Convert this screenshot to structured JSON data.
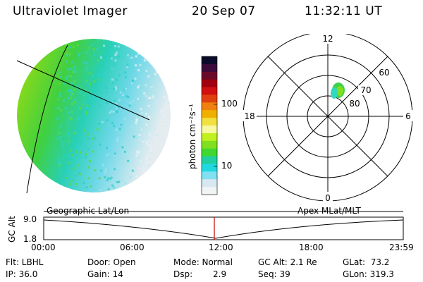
{
  "header": {
    "title": "Ultraviolet Imager",
    "date": "20 Sep 07",
    "time": "11:32:11 UT"
  },
  "colorbar": {
    "label": "photon cm⁻²s⁻¹",
    "ticks": [
      "100",
      "10"
    ],
    "colors": [
      "#0a0a2a",
      "#3a0a3a",
      "#6a0a2a",
      "#a00010",
      "#d01010",
      "#e04010",
      "#f08010",
      "#f0b000",
      "#f0e040",
      "#f8f8a0",
      "#c0f020",
      "#80e020",
      "#40d830",
      "#20d0a0",
      "#20d8e0",
      "#80e0f0",
      "#d8e8f0",
      "#f0f4f4"
    ]
  },
  "polar": {
    "labels": {
      "top": "12",
      "bottom": "0",
      "left": "18",
      "right": "6"
    },
    "ring_labels": [
      "60",
      "70",
      "80"
    ]
  },
  "timeline": {
    "ylabel": "GC Alt",
    "ymax": "9.0",
    "ymin": "1.8",
    "left_label": "Geographic Lat/Lon",
    "right_label": "Apex MLat/MLT",
    "ticks": [
      "00:00",
      "06:00",
      "12:00",
      "18:00",
      "23:59"
    ]
  },
  "info": {
    "flt": "Flt: LBHL",
    "ip": "IP: 36.0",
    "door": "Door: Open",
    "gain": "Gain: 14",
    "mode": "Mode: Normal",
    "dsp": "Dsp:",
    "dsp_val": "2.9",
    "gcalt": "GC Alt: 2.1 Re",
    "seq": "Seq: 39",
    "glat": "GLat:  73.2",
    "glon": "GLon: 319.3"
  }
}
